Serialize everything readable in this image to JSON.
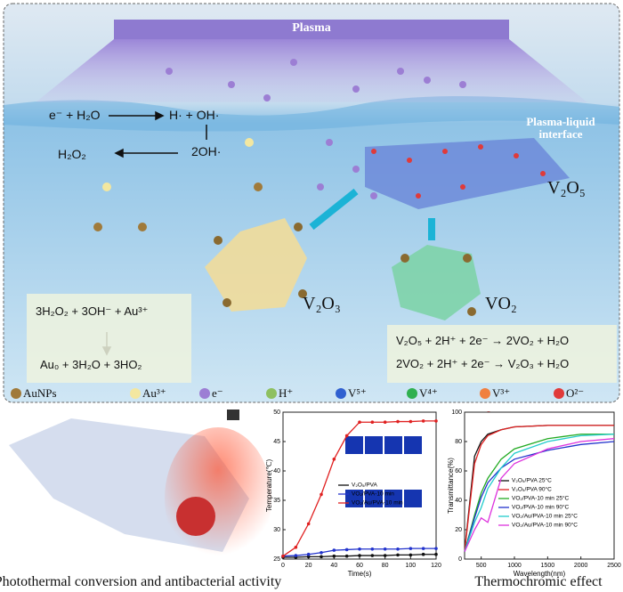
{
  "top_panel": {
    "plasma": "Plasma",
    "reaction_1_left": "e⁻ + H₂O",
    "reaction_1_right": "H· + OH·",
    "reaction_2": "2OH·",
    "reaction_3": "H₂O₂",
    "interface": "Plasma-liquid interface",
    "v2o5": "V₂O₅",
    "v2o3": "V₂O₃",
    "vo2": "VO₂",
    "gold_eq_1": "3H₂O₂ + 3OH⁻ + Au³⁺",
    "gold_eq_2": "Au₀ + 3H₂O + 3HO₂",
    "vanadium_eq_1": "V₂O₅ + 2H⁺ + 2e⁻ → 2VO₂ + H₂O",
    "vanadium_eq_2": "2VO₂ + 2H⁺ + 2e⁻ → V₂O₃ + H₂O",
    "legend": [
      "AuNPs",
      "Au³⁺",
      "e⁻",
      "H⁺",
      "V⁵⁺",
      "V⁴⁺",
      "V³⁺",
      "O²⁻"
    ]
  },
  "charts": [
    {
      "type": "line",
      "x_label": "Time(s)",
      "y_label": "Temperature(℃)",
      "x": [
        0,
        10,
        20,
        30,
        40,
        50,
        60,
        70,
        80,
        90,
        100,
        110,
        120
      ],
      "xlim": [
        0,
        120
      ],
      "xticks": [
        0,
        20,
        40,
        60,
        80,
        100,
        120
      ],
      "ylim": [
        25,
        50
      ],
      "yticks": [
        25,
        30,
        35,
        40,
        45,
        50
      ],
      "series": [
        {
          "name": "V₂O₅/PVA",
          "color": "#111111",
          "values": [
            25.3,
            25.3,
            25.4,
            25.4,
            25.5,
            25.5,
            25.6,
            25.6,
            25.6,
            25.7,
            25.7,
            25.8,
            25.8
          ]
        },
        {
          "name": "VO₂/PVA-10 min",
          "color": "#2233cc",
          "values": [
            25.5,
            25.6,
            25.8,
            26.1,
            26.5,
            26.6,
            26.7,
            26.7,
            26.7,
            26.7,
            26.8,
            26.8,
            26.8
          ]
        },
        {
          "name": "VO₂/Au/PVA-10 min",
          "color": "#e02020",
          "values": [
            25.5,
            27,
            31,
            36,
            42,
            46,
            48.3,
            48.3,
            48.3,
            48.4,
            48.4,
            48.5,
            48.5
          ]
        }
      ]
    },
    {
      "type": "line",
      "x_label": "Wavelength(nm)",
      "y_label": "Transmittance(%)",
      "x": [
        250,
        400,
        500,
        600,
        800,
        1000,
        1500,
        2000,
        2500
      ],
      "xlim": [
        250,
        2500
      ],
      "xticks": [
        500,
        1000,
        1500,
        2000,
        2500
      ],
      "ylim": [
        0,
        100
      ],
      "yticks": [
        0,
        20,
        40,
        60,
        80,
        100
      ],
      "series": [
        {
          "name": "V₂O₅/PVA 25°C",
          "color": "#111111",
          "values": [
            5,
            70,
            80,
            85,
            88,
            90,
            91,
            91,
            91
          ]
        },
        {
          "name": "V₂O₅/PVA 90°C",
          "color": "#e02020",
          "values": [
            5,
            65,
            78,
            84,
            88,
            90,
            91,
            91,
            91
          ]
        },
        {
          "name": "VO₂/PVA-10 min 25°C",
          "color": "#22aa22",
          "values": [
            5,
            30,
            45,
            55,
            68,
            75,
            82,
            85,
            85
          ]
        },
        {
          "name": "VO₂/PVA-10 min 90°C",
          "color": "#2233cc",
          "values": [
            5,
            28,
            42,
            52,
            62,
            68,
            74,
            78,
            80
          ]
        },
        {
          "name": "VO₂/Au/PVA-10 min 25°C",
          "color": "#22cccc",
          "values": [
            5,
            25,
            35,
            48,
            62,
            72,
            80,
            84,
            85
          ]
        },
        {
          "name": "VO₂/Au/PVA-10 min 90°C",
          "color": "#dd33dd",
          "values": [
            5,
            20,
            28,
            25,
            55,
            65,
            75,
            80,
            82
          ]
        }
      ]
    }
  ],
  "captions": [
    "Photothermal conversion and antibacterial activity",
    "Thermochromic effect"
  ]
}
